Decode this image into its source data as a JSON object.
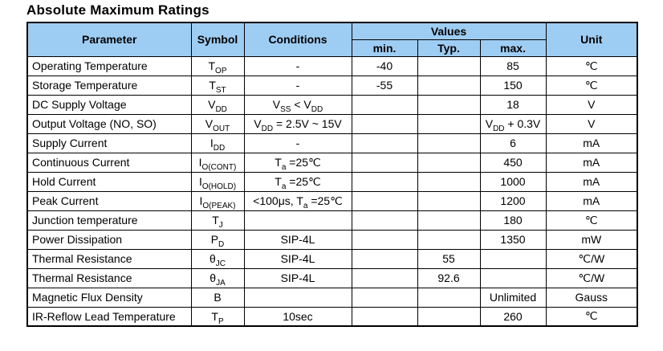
{
  "title": "Absolute Maximum Ratings",
  "colors": {
    "header_bg": "#9ECDF3",
    "border": "#000000",
    "text": "#000000"
  },
  "table": {
    "headers": {
      "parameter": "Parameter",
      "symbol": "Symbol",
      "conditions": "Conditions",
      "values": "Values",
      "min": "min.",
      "typ": "Typ.",
      "max": "max.",
      "unit": "Unit"
    },
    "rows": [
      {
        "parameter": "Operating Temperature",
        "symbol": [
          {
            "t": "T"
          },
          {
            "sub": "OP"
          }
        ],
        "conditions": [
          {
            "t": "-"
          }
        ],
        "min": "-40",
        "typ": "",
        "max": [
          {
            "t": "85"
          }
        ],
        "unit": "℃"
      },
      {
        "parameter": "Storage Temperature",
        "symbol": [
          {
            "t": "T"
          },
          {
            "sub": "ST"
          }
        ],
        "conditions": [
          {
            "t": "-"
          }
        ],
        "min": "-55",
        "typ": "",
        "max": [
          {
            "t": "150"
          }
        ],
        "unit": "℃"
      },
      {
        "parameter": "DC Supply Voltage",
        "symbol": [
          {
            "t": "V"
          },
          {
            "sub": "DD"
          }
        ],
        "conditions": [
          {
            "t": "V"
          },
          {
            "sub": "SS"
          },
          {
            "t": " < V"
          },
          {
            "sub": "DD"
          }
        ],
        "min": "",
        "typ": "",
        "max": [
          {
            "t": "18"
          }
        ],
        "unit": "V"
      },
      {
        "parameter": "Output Voltage (NO, SO)",
        "symbol": [
          {
            "t": "V"
          },
          {
            "sub": "OUT"
          }
        ],
        "conditions": [
          {
            "t": "V"
          },
          {
            "sub": "DD"
          },
          {
            "t": " = 2.5V ~ 15V"
          }
        ],
        "min": "",
        "typ": "",
        "max": [
          {
            "t": "V"
          },
          {
            "sub": "DD"
          },
          {
            "t": " + 0.3V"
          }
        ],
        "unit": "V"
      },
      {
        "parameter": "Supply Current",
        "symbol": [
          {
            "t": "I"
          },
          {
            "sub": "DD"
          }
        ],
        "conditions": [
          {
            "t": "-"
          }
        ],
        "min": "",
        "typ": "",
        "max": [
          {
            "t": "6"
          }
        ],
        "unit": "mA"
      },
      {
        "parameter": "Continuous Current",
        "symbol": [
          {
            "t": "I"
          },
          {
            "sub": "O(CONT)"
          }
        ],
        "conditions": [
          {
            "t": "T"
          },
          {
            "sub": "a"
          },
          {
            "t": " =25℃"
          }
        ],
        "min": "",
        "typ": "",
        "max": [
          {
            "t": "450"
          }
        ],
        "unit": "mA"
      },
      {
        "parameter": "Hold Current",
        "symbol": [
          {
            "t": "I"
          },
          {
            "sub": "O(HOLD)"
          }
        ],
        "conditions": [
          {
            "t": "T"
          },
          {
            "sub": "a"
          },
          {
            "t": " =25℃"
          }
        ],
        "min": "",
        "typ": "",
        "max": [
          {
            "t": "1000"
          }
        ],
        "unit": "mA"
      },
      {
        "parameter": "Peak Current",
        "symbol": [
          {
            "t": "I"
          },
          {
            "sub": "O(PEAK)"
          }
        ],
        "conditions": [
          {
            "t": "<100μs, T"
          },
          {
            "sub": "a"
          },
          {
            "t": " =25℃"
          }
        ],
        "min": "",
        "typ": "",
        "max": [
          {
            "t": "1200"
          }
        ],
        "unit": "mA"
      },
      {
        "parameter": "Junction temperature",
        "symbol": [
          {
            "t": "T"
          },
          {
            "sub": "J"
          }
        ],
        "conditions": [],
        "min": "",
        "typ": "",
        "max": [
          {
            "t": "180"
          }
        ],
        "unit": "℃"
      },
      {
        "parameter": "Power Dissipation",
        "symbol": [
          {
            "t": "P"
          },
          {
            "sub": "D"
          }
        ],
        "conditions": [
          {
            "t": "SIP-4L"
          }
        ],
        "min": "",
        "typ": "",
        "max": [
          {
            "t": "1350"
          }
        ],
        "unit": "mW"
      },
      {
        "parameter": "Thermal Resistance",
        "symbol": [
          {
            "t": "θ"
          },
          {
            "sub": "JC"
          }
        ],
        "conditions": [
          {
            "t": "SIP-4L"
          }
        ],
        "min": "",
        "typ": "55",
        "max": [],
        "unit": "℃/W"
      },
      {
        "parameter": "Thermal Resistance",
        "symbol": [
          {
            "t": "θ"
          },
          {
            "sub": "JA"
          }
        ],
        "conditions": [
          {
            "t": "SIP-4L"
          }
        ],
        "min": "",
        "typ": "92.6",
        "max": [],
        "unit": "℃/W"
      },
      {
        "parameter": "Magnetic Flux Density",
        "symbol": [
          {
            "t": "B"
          }
        ],
        "conditions": [],
        "min": "",
        "typ": "",
        "max": [
          {
            "t": "Unlimited"
          }
        ],
        "unit": "Gauss"
      },
      {
        "parameter": "IR-Reflow Lead Temperature",
        "symbol": [
          {
            "t": "T"
          },
          {
            "sub": "P"
          }
        ],
        "conditions": [
          {
            "t": "10sec"
          }
        ],
        "min": "",
        "typ": "",
        "max": [
          {
            "t": "260"
          }
        ],
        "unit": "℃"
      }
    ]
  }
}
